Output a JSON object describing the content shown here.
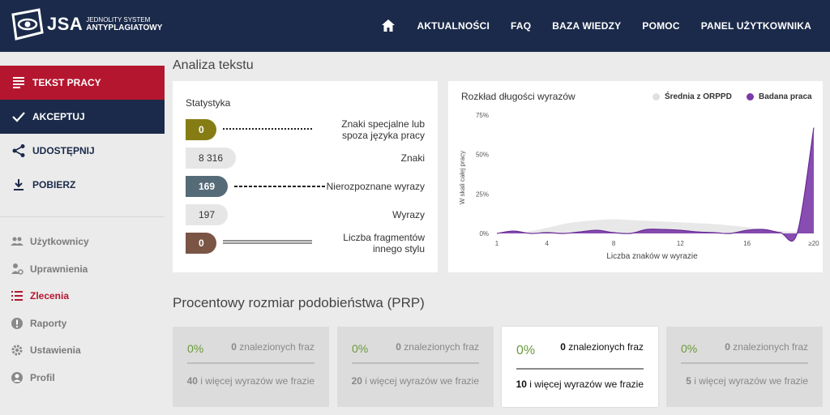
{
  "header": {
    "logo_text": "JSA",
    "logo_sub1": "JEDNOLITY SYSTEM",
    "logo_sub2": "ANTYPLAGIATOWY",
    "nav": [
      "AKTUALNOŚCI",
      "FAQ",
      "BAZA WIEDZY",
      "POMOC",
      "PANEL UŻYTKOWNIKA"
    ]
  },
  "sidebar": {
    "actions": [
      {
        "label": "TEKST PRACY",
        "icon": "text-lines-icon"
      },
      {
        "label": "AKCEPTUJ",
        "icon": "check-icon"
      },
      {
        "label": "UDOSTĘPNIJ",
        "icon": "share-icon"
      },
      {
        "label": "POBIERZ",
        "icon": "download-icon"
      }
    ],
    "nav": [
      {
        "label": "Użytkownicy",
        "icon": "users-icon"
      },
      {
        "label": "Uprawnienia",
        "icon": "permissions-icon"
      },
      {
        "label": "Zlecenia",
        "icon": "list-icon"
      },
      {
        "label": "Raporty",
        "icon": "alert-icon"
      },
      {
        "label": "Ustawienia",
        "icon": "gear-icon"
      },
      {
        "label": "Profil",
        "icon": "profile-icon"
      }
    ]
  },
  "analysis": {
    "title": "Analiza tekstu",
    "stats_title": "Statystyka",
    "stats": [
      {
        "value": "0",
        "label1": "Znaki specjalne lub",
        "label2": "spoza języka pracy",
        "color": "#857d14"
      },
      {
        "value": "8 316",
        "label1": "Znaki",
        "label2": "",
        "color": "#e6e6e6"
      },
      {
        "value": "169",
        "label1": "Nierozpoznane wyrazy",
        "label2": "",
        "color": "#566b78"
      },
      {
        "value": "197",
        "label1": "Wyrazy",
        "label2": "",
        "color": "#e6e6e6"
      },
      {
        "value": "0",
        "label1": "Liczba fragmentów",
        "label2": "innego stylu",
        "color": "#7a5545"
      }
    ]
  },
  "chart_data": {
    "type": "area",
    "title": "Rozkład długości wyrazów",
    "xlabel": "Liczba znaków w wyrazie",
    "ylabel": "W skali całej pracy",
    "x_ticks": [
      "1",
      "4",
      "8",
      "12",
      "16",
      "≥20"
    ],
    "y_ticks": [
      "0%",
      "25%",
      "50%",
      "75%"
    ],
    "ylim": [
      0,
      75
    ],
    "x": [
      1,
      2,
      3,
      4,
      5,
      6,
      7,
      8,
      9,
      10,
      11,
      12,
      13,
      14,
      15,
      16,
      17,
      18,
      19,
      20
    ],
    "series": [
      {
        "name": "Średnia z ORPPD",
        "color": "#e8e8e8",
        "values": [
          0,
          0.5,
          1.5,
          3.5,
          6.0,
          7.5,
          8.5,
          9.0,
          8.5,
          8.0,
          7.5,
          7.0,
          6.5,
          6.0,
          5.0,
          4.0,
          2.5,
          1.5,
          1.0,
          1.0
        ]
      },
      {
        "name": "Badana praca",
        "color": "#7b3aa8",
        "values": [
          0,
          1.5,
          0,
          0.5,
          0,
          1.0,
          2.0,
          0.5,
          0,
          2.5,
          2.5,
          2.0,
          1.0,
          0.5,
          0,
          2.0,
          2.5,
          0.5,
          0,
          67
        ]
      }
    ],
    "legend": "top-right",
    "grid": false
  },
  "prp": {
    "title": "Procentowy rozmiar podobieństwa (PRP)",
    "found_suffix": "znalezionych fraz",
    "words_suffix": "i więcej wyrazów we frazie",
    "cards": [
      {
        "pct": "0%",
        "found": "0",
        "words": "40"
      },
      {
        "pct": "0%",
        "found": "0",
        "words": "20"
      },
      {
        "pct": "0%",
        "found": "0",
        "words": "10"
      },
      {
        "pct": "0%",
        "found": "0",
        "words": "5"
      }
    ]
  }
}
